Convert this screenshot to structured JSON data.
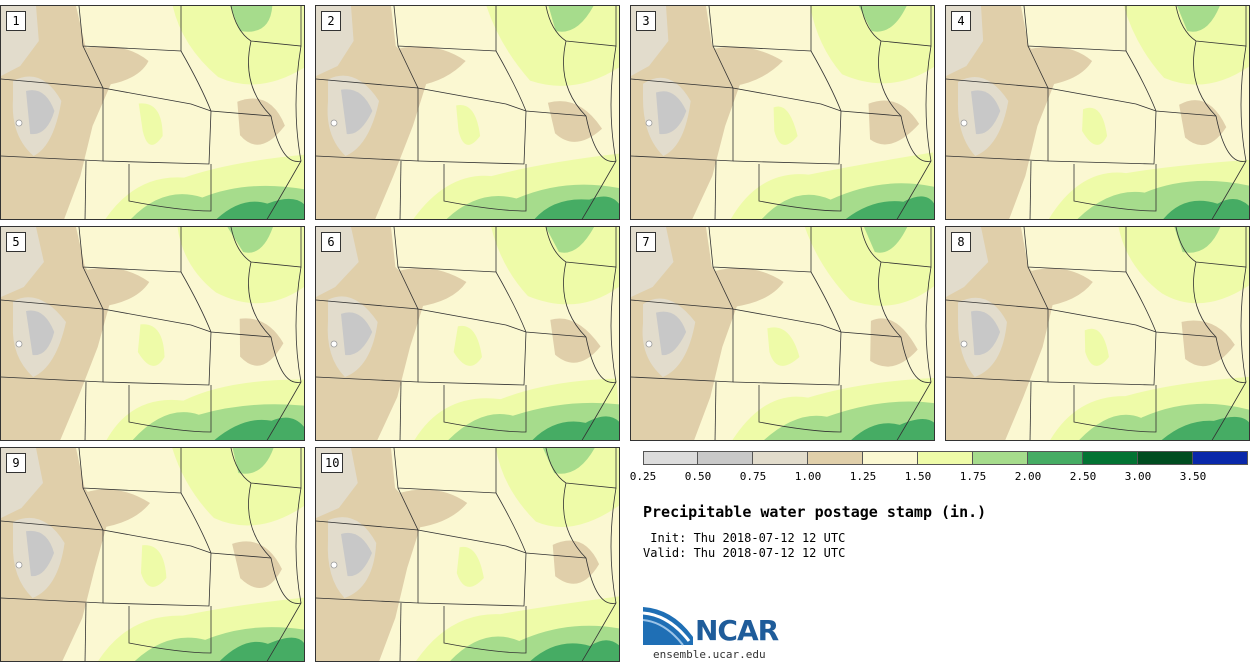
{
  "panels": [
    {
      "label": "1"
    },
    {
      "label": "2"
    },
    {
      "label": "3"
    },
    {
      "label": "4"
    },
    {
      "label": "5"
    },
    {
      "label": "6"
    },
    {
      "label": "7"
    },
    {
      "label": "8"
    },
    {
      "label": "9"
    },
    {
      "label": "10"
    }
  ],
  "colorbar": {
    "bins": [
      {
        "color": "#dcdcdc"
      },
      {
        "color": "#c8c8c8"
      },
      {
        "color": "#e2dccc"
      },
      {
        "color": "#e0cfaa"
      },
      {
        "color": "#fbf8d2"
      },
      {
        "color": "#eefba8"
      },
      {
        "color": "#a6dc8c"
      },
      {
        "color": "#46ac64"
      },
      {
        "color": "#037333"
      },
      {
        "color": "#004d20"
      },
      {
        "color": "#0a28aa"
      }
    ],
    "ticks": [
      "0.25",
      "0.50",
      "0.75",
      "1.00",
      "1.25",
      "1.50",
      "1.75",
      "2.00",
      "2.50",
      "3.00",
      "3.50"
    ]
  },
  "title": "Precipitable water postage stamp (in.)",
  "init_line": " Init: Thu 2018-07-12 12 UTC",
  "valid_line": "Valid: Thu 2018-07-12 12 UTC",
  "logo": {
    "name": "NCAR",
    "url": "ensemble.ucar.edu"
  },
  "colors": {
    "background": "#ffffff",
    "border": "#333333",
    "map_base": "#f6f1cf"
  }
}
